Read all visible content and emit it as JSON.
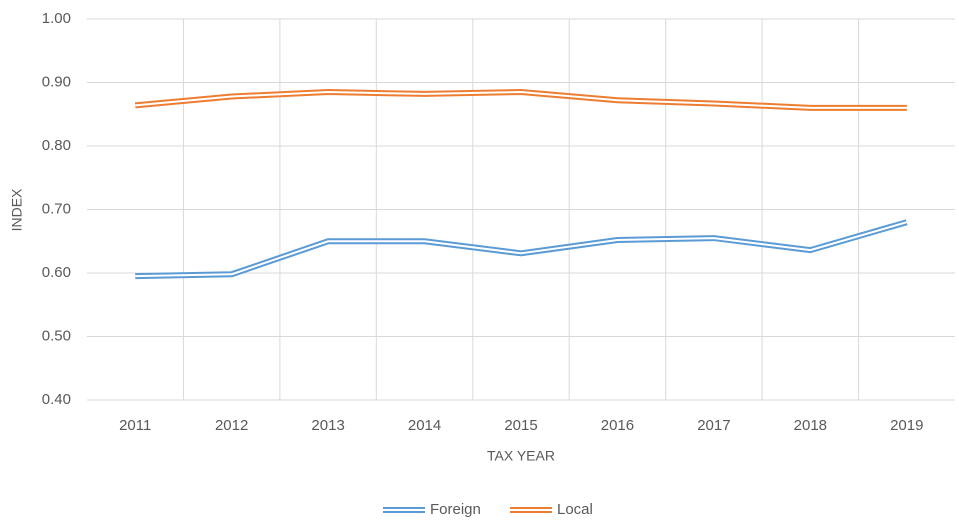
{
  "chart_data": {
    "type": "line",
    "x_label": "TAX YEAR",
    "y_label": "INDEX",
    "categories": [
      "2011",
      "2012",
      "2013",
      "2014",
      "2015",
      "2016",
      "2017",
      "2018",
      "2019"
    ],
    "series": [
      {
        "name": "Foreign",
        "color": "#5b9bd5",
        "values": [
          0.595,
          0.598,
          0.65,
          0.65,
          0.631,
          0.652,
          0.655,
          0.636,
          0.68
        ]
      },
      {
        "name": "Local",
        "color": "#ed7d31",
        "values": [
          0.864,
          0.878,
          0.885,
          0.882,
          0.885,
          0.872,
          0.867,
          0.86,
          0.86
        ]
      }
    ],
    "ylim": [
      0.4,
      1.0
    ],
    "yticks": [
      {
        "value": 0.4,
        "label": "0.40"
      },
      {
        "value": 0.5,
        "label": "0.50"
      },
      {
        "value": 0.6,
        "label": "0.60"
      },
      {
        "value": 0.7,
        "label": "0.70"
      },
      {
        "value": 0.8,
        "label": "0.80"
      },
      {
        "value": 0.9,
        "label": "0.90"
      },
      {
        "value": 1.0,
        "label": "1.00"
      }
    ],
    "grid": true,
    "legend": "bottom"
  }
}
